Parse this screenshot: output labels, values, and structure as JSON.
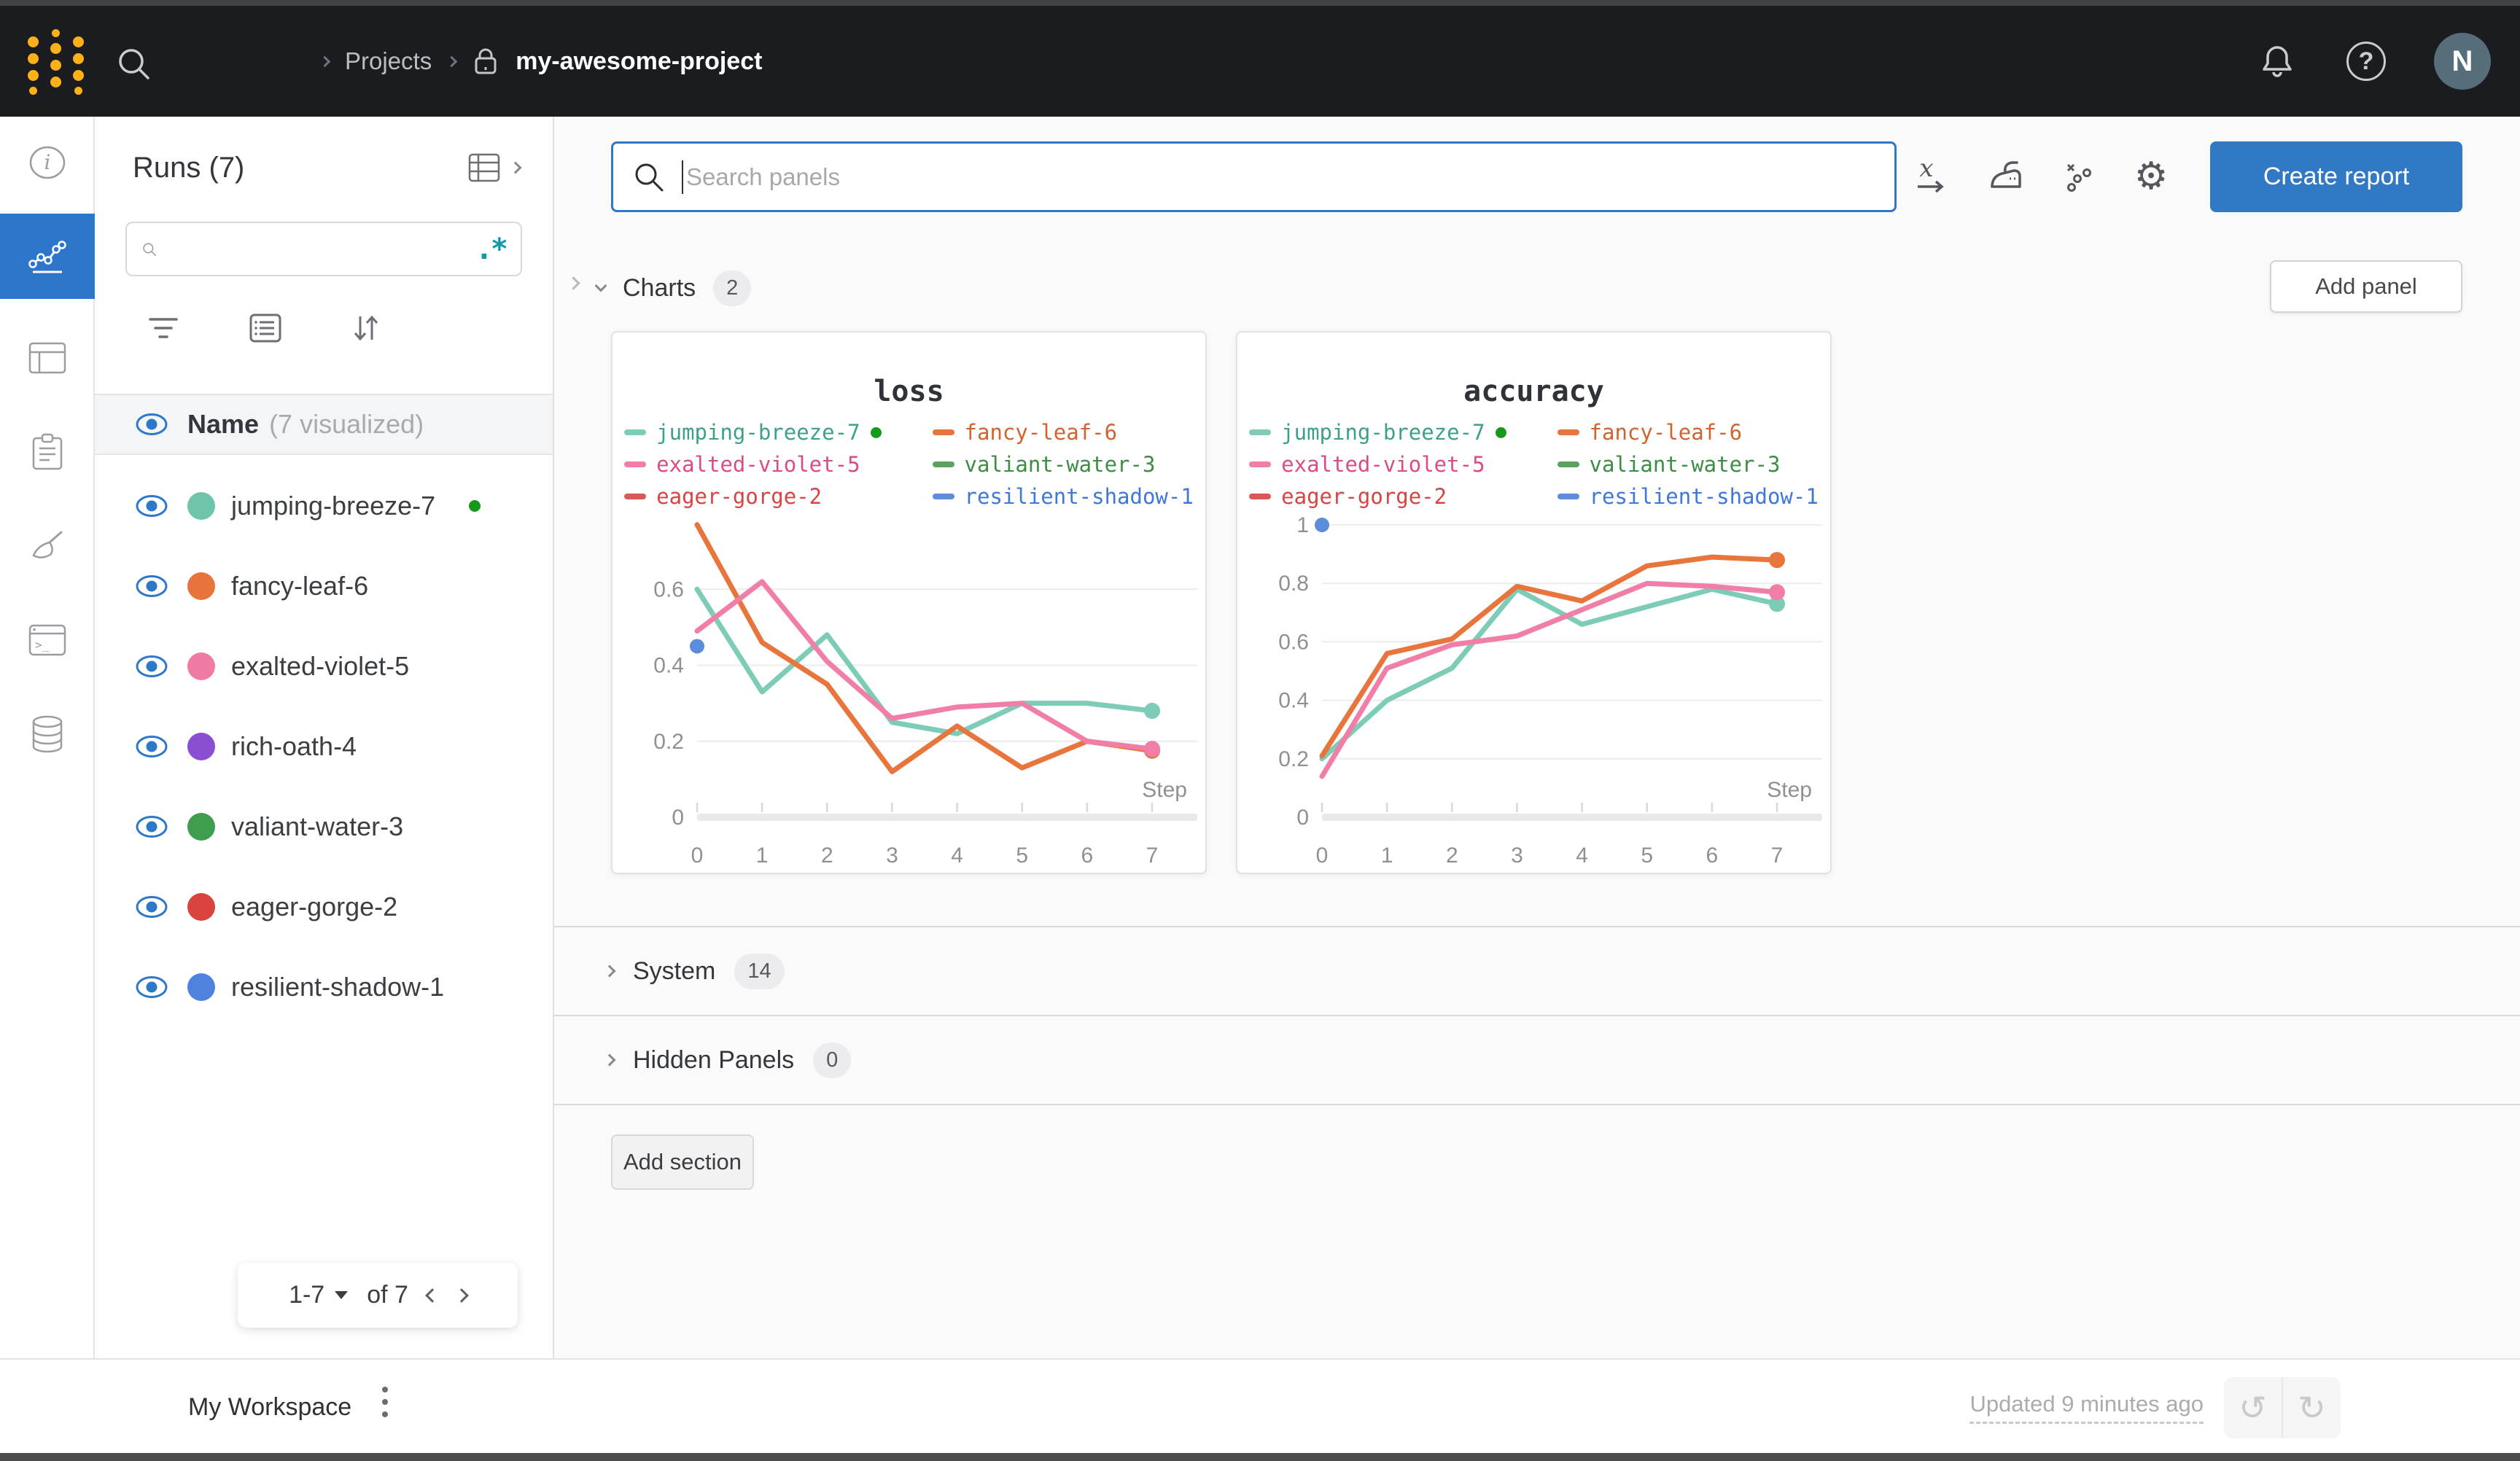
{
  "topbar": {
    "breadcrumb": {
      "projects": "Projects",
      "project_name": "my-awesome-project"
    },
    "avatar_initial": "N",
    "help_glyph": "?"
  },
  "sidebar": {
    "title": "Runs (7)",
    "search_placeholder": "",
    "regex_label": ".*",
    "header": {
      "name_label": "Name",
      "visualized_label": "(7 visualized)"
    },
    "runs": [
      {
        "name": "jumping-breeze-7",
        "color": "#6fc5ab",
        "running": true
      },
      {
        "name": "fancy-leaf-6",
        "color": "#e8743c"
      },
      {
        "name": "exalted-violet-5",
        "color": "#ef7ba4"
      },
      {
        "name": "rich-oath-4",
        "color": "#8a4fd1"
      },
      {
        "name": "valiant-water-3",
        "color": "#3f9e4d"
      },
      {
        "name": "eager-gorge-2",
        "color": "#d9453e"
      },
      {
        "name": "resilient-shadow-1",
        "color": "#4e82dc"
      }
    ],
    "pagination": {
      "range": "1-7",
      "of_label": "of 7"
    }
  },
  "main": {
    "search_placeholder": "Search panels",
    "create_report_label": "Create report",
    "add_panel_label": "Add panel",
    "sections": [
      {
        "label": "Charts",
        "count": "2"
      },
      {
        "label": "System",
        "count": "14"
      },
      {
        "label": "Hidden Panels",
        "count": "0"
      }
    ],
    "add_section_label": "Add section"
  },
  "footer": {
    "workspace_label": "My Workspace",
    "updated_label": "Updated 9 minutes ago",
    "undo_glyph": "↺",
    "redo_glyph": "↻"
  },
  "chart_data": [
    {
      "type": "line",
      "title": "loss",
      "xlabel": "Step",
      "x": [
        0,
        1,
        2,
        3,
        4,
        5,
        6,
        7
      ],
      "ylim": [
        0,
        0.8
      ],
      "yticks": [
        0,
        0.2,
        0.4,
        0.6
      ],
      "grid": true,
      "legend_position": "top",
      "series": [
        {
          "name": "jumping-breeze-7",
          "color": "#3da08b",
          "line": "#7cccb7",
          "running": true,
          "end_dot": true,
          "values": [
            0.6,
            0.33,
            0.48,
            0.25,
            0.22,
            0.3,
            0.3,
            0.28
          ]
        },
        {
          "name": "fancy-leaf-6",
          "color": "#cf6430",
          "line": "#e8763c",
          "end_dot": true,
          "values": [
            0.77,
            0.46,
            0.35,
            0.12,
            0.24,
            0.13,
            0.2,
            0.175
          ]
        },
        {
          "name": "exalted-violet-5",
          "color": "#db4c86",
          "line": "#f07ea8",
          "end_dot": true,
          "values": [
            0.49,
            0.62,
            0.41,
            0.26,
            0.29,
            0.3,
            0.2,
            0.18
          ]
        },
        {
          "name": "valiant-water-3",
          "color": "#3e8d45",
          "line": "#5aa35f",
          "values": []
        },
        {
          "name": "eager-gorge-2",
          "color": "#d64444",
          "line": "#d95a55",
          "values": []
        },
        {
          "name": "resilient-shadow-1",
          "color": "#3e78d8",
          "line": "#5b8ddb",
          "values": [
            0.45
          ]
        }
      ]
    },
    {
      "type": "line",
      "title": "accuracy",
      "xlabel": "Step",
      "x": [
        0,
        1,
        2,
        3,
        4,
        5,
        6,
        7
      ],
      "ylim": [
        0,
        1.04
      ],
      "yticks": [
        0,
        0.2,
        0.4,
        0.6,
        0.8,
        1
      ],
      "grid": true,
      "legend_position": "top",
      "series": [
        {
          "name": "jumping-breeze-7",
          "color": "#3da08b",
          "line": "#7cccb7",
          "running": true,
          "end_dot": true,
          "values": [
            0.2,
            0.4,
            0.51,
            0.78,
            0.66,
            0.72,
            0.78,
            0.73
          ]
        },
        {
          "name": "fancy-leaf-6",
          "color": "#cf6430",
          "line": "#e8763c",
          "end_dot": true,
          "values": [
            0.21,
            0.56,
            0.61,
            0.79,
            0.74,
            0.86,
            0.89,
            0.88
          ]
        },
        {
          "name": "exalted-violet-5",
          "color": "#db4c86",
          "line": "#f07ea8",
          "end_dot": true,
          "values": [
            0.14,
            0.51,
            0.59,
            0.62,
            0.71,
            0.8,
            0.79,
            0.77
          ]
        },
        {
          "name": "valiant-water-3",
          "color": "#3e8d45",
          "line": "#5aa35f",
          "values": []
        },
        {
          "name": "eager-gorge-2",
          "color": "#d64444",
          "line": "#d95a55",
          "values": []
        },
        {
          "name": "resilient-shadow-1",
          "color": "#3e78d8",
          "line": "#5b8ddb",
          "values": [
            1.0
          ]
        }
      ]
    }
  ]
}
